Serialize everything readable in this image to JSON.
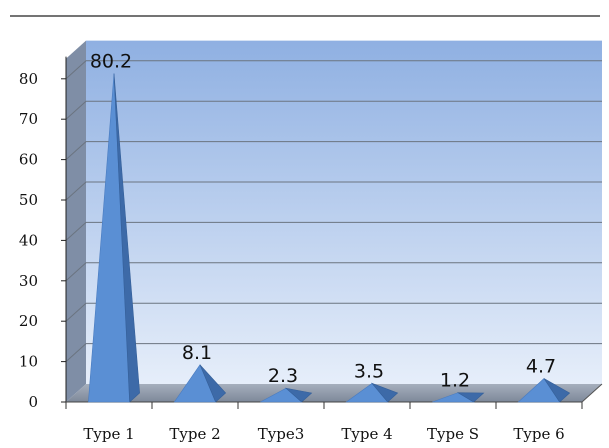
{
  "chart_data": {
    "type": "bar",
    "style": "3d-pyramid",
    "categories": [
      "Type 1",
      "Type 2",
      "Type3",
      "Type 4",
      "Type S",
      "Type 6"
    ],
    "values": [
      80.2,
      8.1,
      2.3,
      3.5,
      1.2,
      4.7
    ],
    "data_labels": [
      "80.2",
      "8.1",
      "2.3",
      "3.5",
      "1.2",
      "4.7"
    ],
    "yticks": [
      "0",
      "10",
      "20",
      "30",
      "40",
      "50",
      "60",
      "70",
      "80"
    ],
    "ylim": [
      0,
      85
    ],
    "grid": true,
    "legend": "none",
    "colors": {
      "back_wall_top": "#8fb0e2",
      "back_wall_bottom": "#e6eefa",
      "side_wall": "#7f8ea6",
      "floor": "#8c97a8",
      "pyramid_light": "#5a8fd4",
      "pyramid_dark": "#3d6aa8",
      "grid": "#6b7480",
      "top_rule": "#222222"
    }
  }
}
